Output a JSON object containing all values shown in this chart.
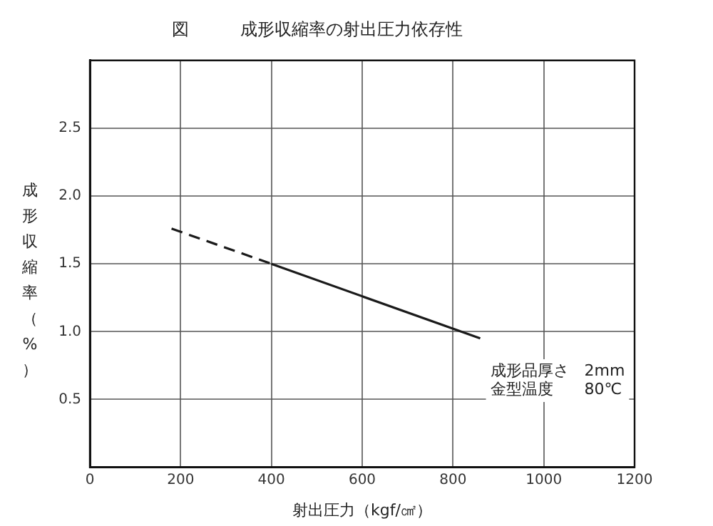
{
  "chart_data": {
    "type": "line",
    "title": "図　　　成形収縮率の射出圧力依存性",
    "xlabel": "射出圧力（kgf/㎠）",
    "ylabel": "成形収縮率（%）",
    "series": [
      {
        "color": "#1a1a1a",
        "line_style": "dashed",
        "x": [
          180,
          400
        ],
        "values": [
          1.76,
          1.5
        ]
      },
      {
        "color": "#1a1a1a",
        "line_style": "solid",
        "x": [
          400,
          860
        ],
        "values": [
          1.5,
          0.95
        ]
      }
    ],
    "xlim": [
      0,
      1200
    ],
    "xticks": [
      0,
      200,
      400,
      600,
      800,
      1000,
      1200
    ],
    "ylim": [
      0,
      3
    ],
    "yticks": [
      0.5,
      {
        "value": 1,
        "label": "1.0"
      },
      1.5,
      {
        "value": 2,
        "label": "2.0"
      },
      2.5
    ],
    "annotations": [
      "成形品厚さ　2mm",
      "金型温度　　80℃"
    ],
    "grid": true,
    "legend": false,
    "marker": "none"
  }
}
